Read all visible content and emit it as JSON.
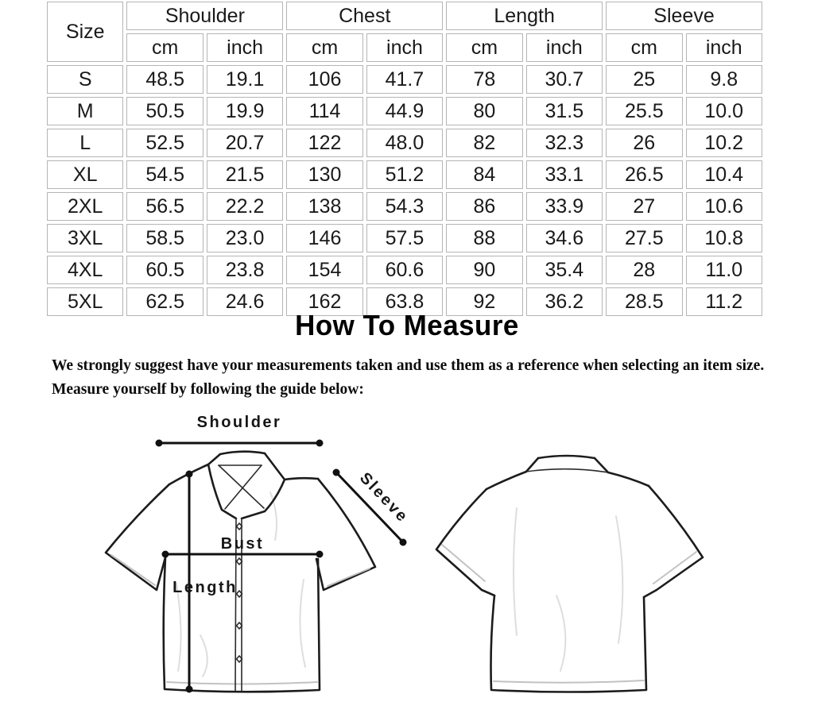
{
  "table": {
    "corner": "Size",
    "groups": [
      "Shoulder",
      "Chest",
      "Length",
      "Sleeve"
    ],
    "units": [
      "cm",
      "inch"
    ],
    "rows": [
      [
        "S",
        "48.5",
        "19.1",
        "106",
        "41.7",
        "78",
        "30.7",
        "25",
        "9.8"
      ],
      [
        "M",
        "50.5",
        "19.9",
        "114",
        "44.9",
        "80",
        "31.5",
        "25.5",
        "10.0"
      ],
      [
        "L",
        "52.5",
        "20.7",
        "122",
        "48.0",
        "82",
        "32.3",
        "26",
        "10.2"
      ],
      [
        "XL",
        "54.5",
        "21.5",
        "130",
        "51.2",
        "84",
        "33.1",
        "26.5",
        "10.4"
      ],
      [
        "2XL",
        "56.5",
        "22.2",
        "138",
        "54.3",
        "86",
        "33.9",
        "27",
        "10.6"
      ],
      [
        "3XL",
        "58.5",
        "23.0",
        "146",
        "57.5",
        "88",
        "34.6",
        "27.5",
        "10.8"
      ],
      [
        "4XL",
        "60.5",
        "23.8",
        "154",
        "60.6",
        "90",
        "35.4",
        "28",
        "11.0"
      ],
      [
        "5XL",
        "62.5",
        "24.6",
        "162",
        "63.8",
        "92",
        "36.2",
        "28.5",
        "11.2"
      ]
    ]
  },
  "section": {
    "title": "How To Measure",
    "intro_line1": "We strongly suggest have your measurements taken and use them as a reference when selecting an item size.",
    "intro_line2": "Measure yourself by following the guide below:"
  },
  "diagram": {
    "labels": {
      "shoulder": "Shoulder",
      "sleeve": "Sleeve",
      "bust": "Bust",
      "length": "Length"
    }
  },
  "colors": {
    "table_border": "#b5b5b5",
    "drawing_outline": "#1c1c1c",
    "stitch_gray": "#c2c2c2",
    "text": "#000000"
  }
}
